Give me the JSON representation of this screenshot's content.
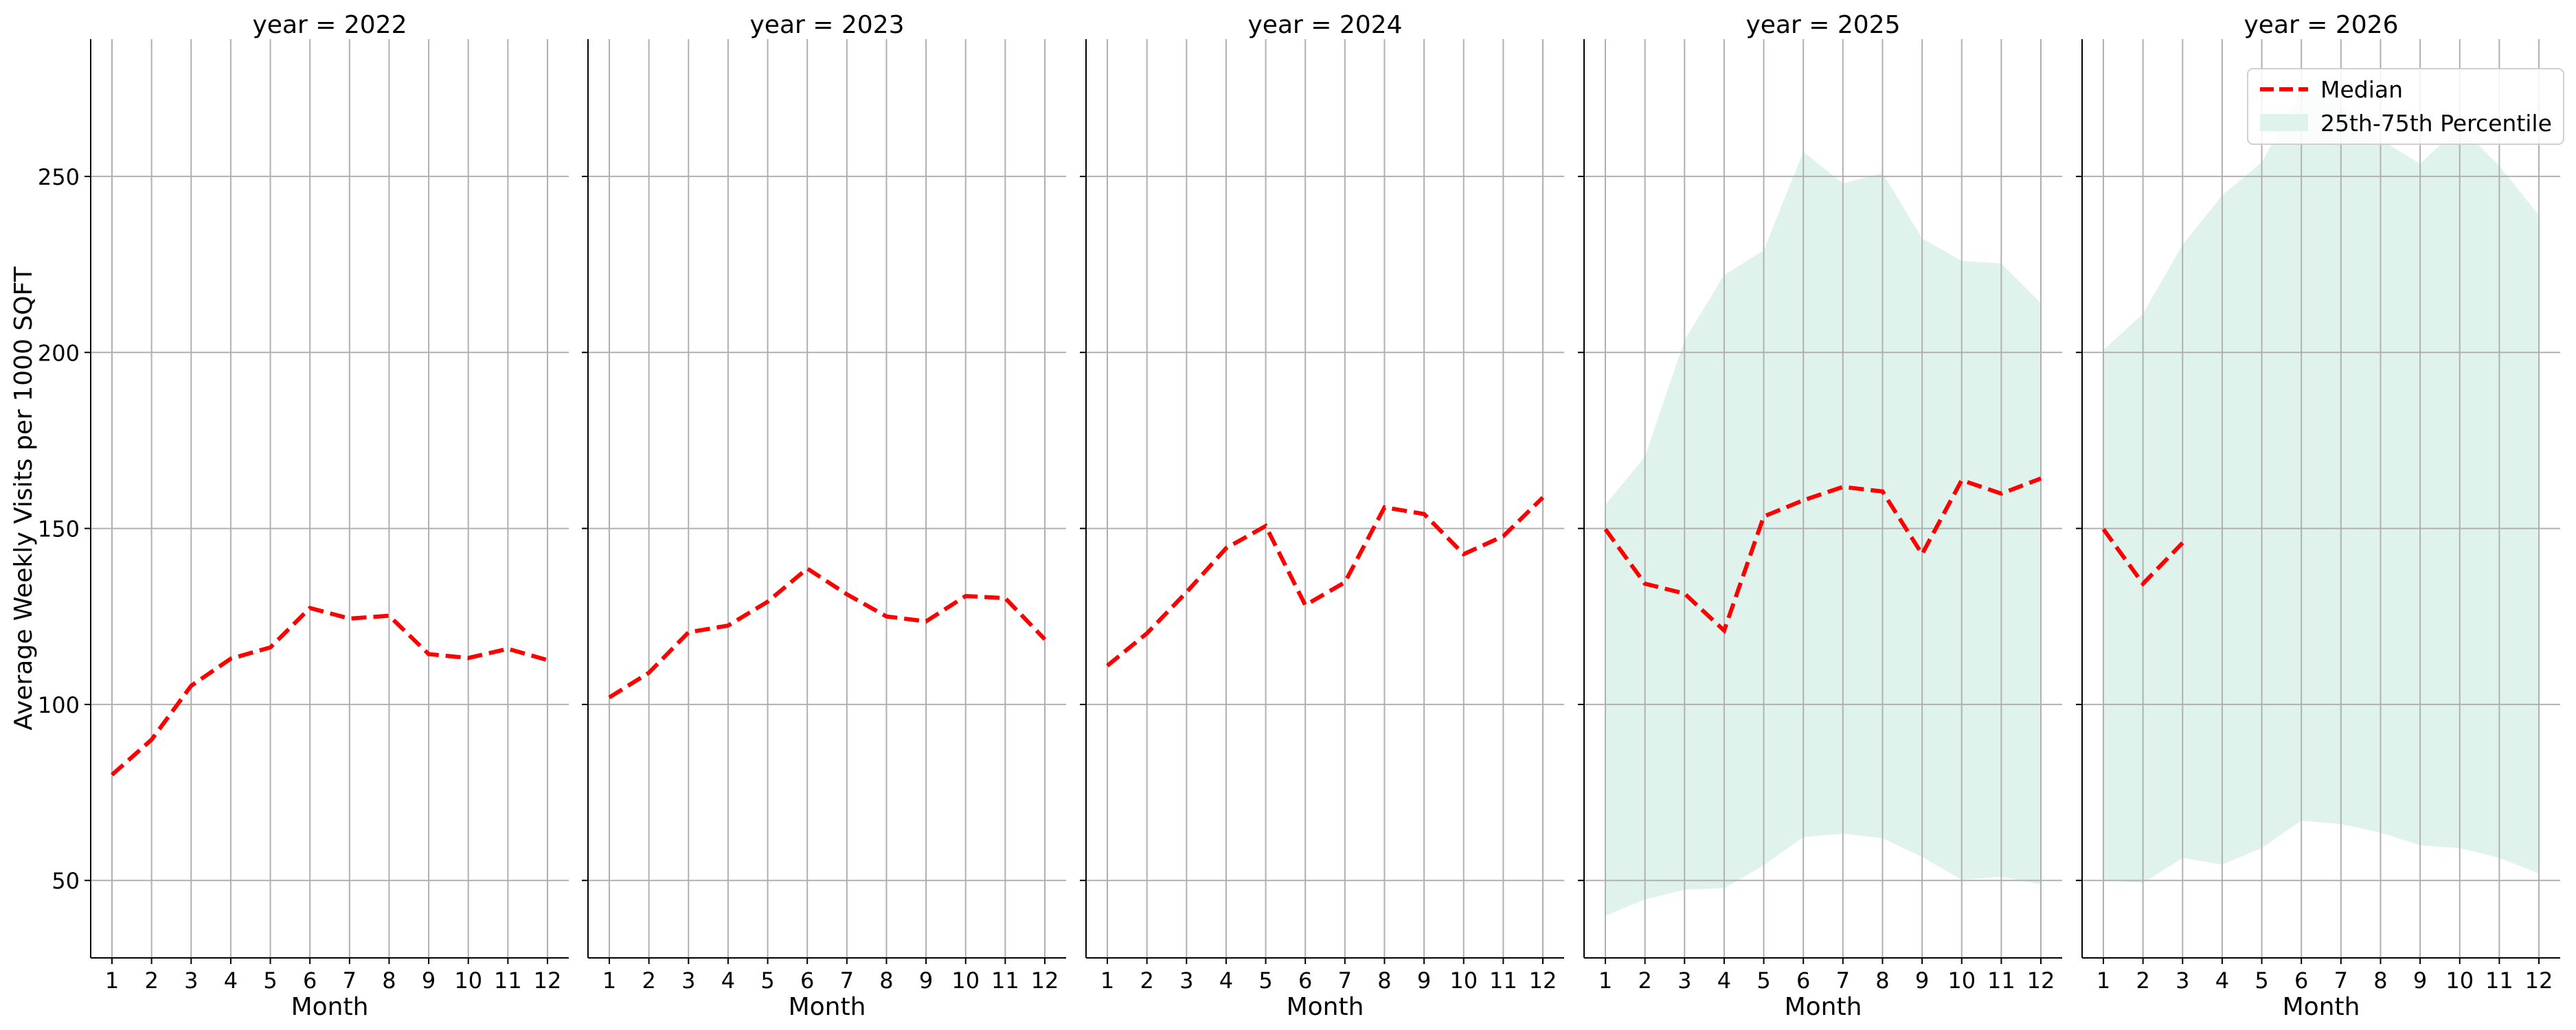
{
  "chart_data": {
    "type": "line",
    "ylabel": "Average Weekly Visits per 1000 SQFT",
    "xlabel": "Month",
    "ylim": [
      28,
      289
    ],
    "yticks": [
      50,
      100,
      150,
      200,
      250
    ],
    "xticks": [
      1,
      2,
      3,
      4,
      5,
      6,
      7,
      8,
      9,
      10,
      11,
      12
    ],
    "grid": true,
    "legend": {
      "placement": "top-right",
      "entries": [
        "Median",
        "25th-75th Percentile"
      ]
    },
    "colors": {
      "median": "#ff0000",
      "band": "#dff2ec",
      "grid": "#b0b0b0"
    },
    "panels": [
      {
        "title": "year = 2022",
        "median": [
          80,
          90,
          105.3,
          113,
          116.2,
          127.4,
          124.4,
          125.2,
          114.3,
          113.2,
          115.8,
          112.6
        ]
      },
      {
        "title": "year = 2023",
        "median": [
          102,
          109,
          120.5,
          122.4,
          129.2,
          138.6,
          131.3,
          125,
          123.6,
          130.8,
          130.2,
          118.5
        ]
      },
      {
        "title": "year = 2024",
        "median": [
          111,
          120.2,
          131.9,
          144.4,
          150.7,
          128.2,
          134.7,
          156,
          154.1,
          142.7,
          147.8,
          158.8
        ]
      },
      {
        "title": "year = 2025",
        "median": [
          149.8,
          134.3,
          131.5,
          121,
          153.4,
          158,
          161.8,
          160.5,
          142.7,
          163.7,
          159.9,
          164.2
        ],
        "p75": [
          156.7,
          170.4,
          203.5,
          222,
          229,
          257,
          248,
          251,
          232.4,
          226,
          225.3,
          214
        ],
        "p25": [
          40,
          44.6,
          47.4,
          47.8,
          54.3,
          62.3,
          63.3,
          62,
          56.7,
          50.2,
          51.1,
          48.9
        ]
      },
      {
        "title": "year = 2026",
        "median": [
          149.8,
          134.3,
          145.9
        ],
        "p75": [
          200.7,
          211,
          230.6,
          244.6,
          254,
          274.5,
          270.7,
          260.5,
          253.6,
          264.2,
          253,
          239
        ],
        "p25": [
          50.2,
          49.3,
          56.4,
          54.5,
          59.2,
          67,
          66,
          63.6,
          60,
          59.2,
          56.4,
          52
        ]
      }
    ]
  }
}
